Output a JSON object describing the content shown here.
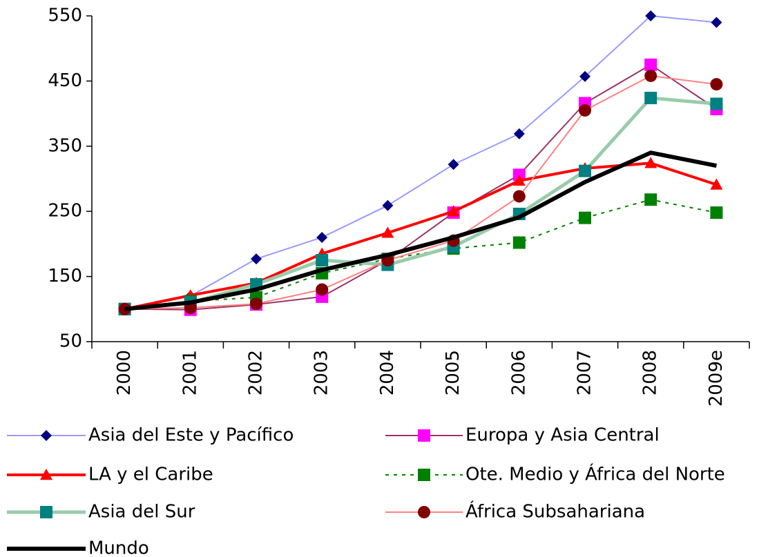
{
  "chart_data": {
    "type": "line",
    "categories": [
      "2000",
      "2001",
      "2002",
      "2003",
      "2004",
      "2005",
      "2006",
      "2007",
      "2008",
      "2009e"
    ],
    "ylim": [
      50,
      550
    ],
    "yticks": [
      50,
      150,
      250,
      350,
      450,
      550
    ],
    "series": [
      {
        "name": "Asia del Este y Pacífico",
        "color": "#9999ff",
        "marker_color": "#000080",
        "marker": "diamond",
        "width": 2,
        "dash": false,
        "values": [
          100,
          120,
          177,
          210,
          259,
          322,
          369,
          457,
          550,
          540
        ]
      },
      {
        "name": "Europa y Asia Central",
        "color": "#993366",
        "marker_color": "#ff00ff",
        "marker": "square",
        "width": 2,
        "dash": false,
        "values": [
          100,
          99,
          107,
          119,
          175,
          248,
          306,
          416,
          475,
          407
        ]
      },
      {
        "name": "LA y el Caribe",
        "color": "#ff0000",
        "marker_color": "#ff0000",
        "marker": "triangle",
        "width": 4,
        "dash": false,
        "values": [
          100,
          121,
          140,
          185,
          217,
          250,
          297,
          316,
          324,
          291
        ]
      },
      {
        "name": "Ote. Medio y África del Norte",
        "color": "#008000",
        "marker_color": "#008000",
        "marker": "square",
        "width": 2,
        "dash": true,
        "values": [
          100,
          112,
          118,
          155,
          177,
          193,
          202,
          240,
          268,
          248
        ]
      },
      {
        "name": "Asia del Sur",
        "color": "#99ccaa",
        "marker_color": "#008080",
        "marker": "square",
        "width": 5,
        "dash": false,
        "values": [
          100,
          110,
          138,
          175,
          168,
          196,
          246,
          312,
          424,
          415
        ]
      },
      {
        "name": "África Subsahariana",
        "color": "#ff8080",
        "marker_color": "#800000",
        "marker": "circle",
        "width": 2,
        "dash": false,
        "values": [
          100,
          102,
          108,
          130,
          175,
          205,
          273,
          405,
          458,
          445
        ]
      },
      {
        "name": "Mundo",
        "color": "#000000",
        "marker_color": "#000000",
        "marker": "none",
        "width": 6,
        "dash": false,
        "values": [
          100,
          110,
          130,
          160,
          183,
          210,
          241,
          295,
          340,
          320
        ]
      }
    ]
  }
}
